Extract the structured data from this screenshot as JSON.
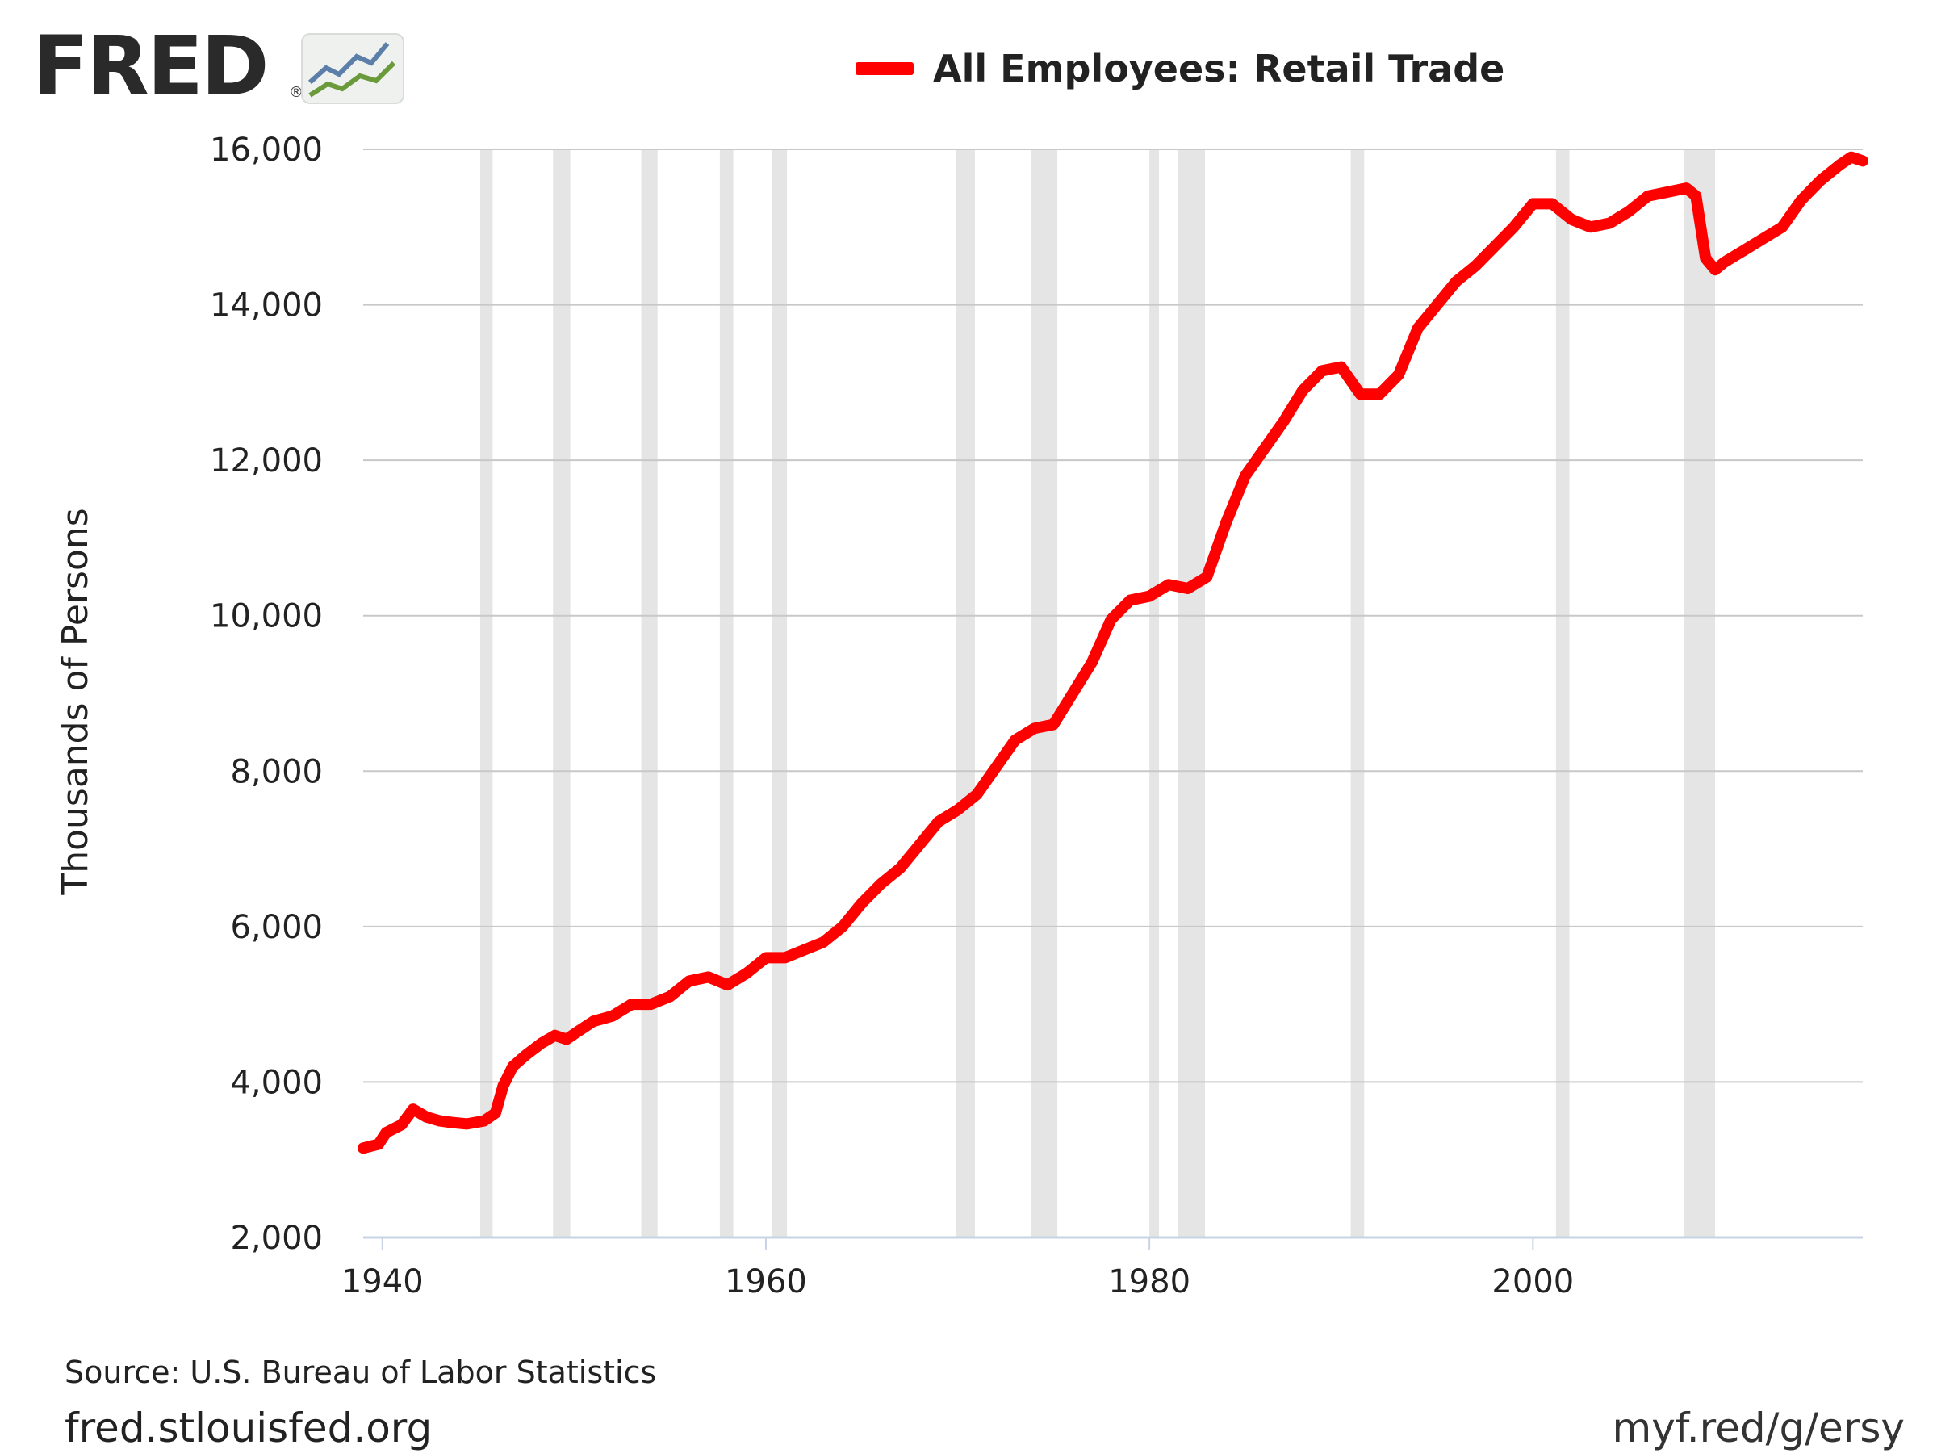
{
  "logo": {
    "text": "FRED",
    "reg": "®"
  },
  "colors": {
    "series": "#ff0000",
    "recession": "#e5e5e5",
    "grid": "#c8c8c8",
    "axis": "#c8d4e4"
  },
  "chart_data": {
    "type": "line",
    "title": "All Employees: Retail Trade",
    "ylabel": "Thousands of Persons",
    "xlabel": "",
    "xlim": [
      1939,
      2017.2
    ],
    "ylim": [
      2000,
      16000
    ],
    "xticks": [
      1940,
      1960,
      1980,
      2000
    ],
    "xtick_labels": [
      "1940",
      "1960",
      "1980",
      "2000"
    ],
    "yticks": [
      2000,
      4000,
      6000,
      8000,
      10000,
      12000,
      14000,
      16000
    ],
    "ytick_labels": [
      "2,000",
      "4,000",
      "6,000",
      "8,000",
      "10,000",
      "12,000",
      "14,000",
      "16,000"
    ],
    "grid": true,
    "legend": "top-center",
    "recessions": [
      [
        1945.1,
        1945.75
      ],
      [
        1948.9,
        1949.8
      ],
      [
        1953.5,
        1954.35
      ],
      [
        1957.6,
        1958.3
      ],
      [
        1960.3,
        1961.1
      ],
      [
        1969.9,
        1970.9
      ],
      [
        1973.85,
        1975.2
      ],
      [
        1980.0,
        1980.5
      ],
      [
        1981.5,
        1982.9
      ],
      [
        1990.5,
        1991.2
      ],
      [
        2001.2,
        2001.9
      ],
      [
        2007.9,
        2009.5
      ]
    ],
    "series": [
      {
        "name": "All Employees: Retail Trade",
        "x": [
          1939.0,
          1939.8,
          1940.2,
          1941.0,
          1941.6,
          1942.3,
          1943.0,
          1943.6,
          1944.4,
          1945.3,
          1945.9,
          1946.3,
          1946.8,
          1947.5,
          1948.3,
          1949.0,
          1949.6,
          1950.2,
          1951.0,
          1952.0,
          1953.0,
          1954.0,
          1955.0,
          1956.0,
          1957.0,
          1958.0,
          1959.0,
          1960.0,
          1961.0,
          1962.0,
          1963.0,
          1964.0,
          1965.0,
          1966.0,
          1967.0,
          1968.0,
          1969.0,
          1970.0,
          1971.0,
          1972.0,
          1973.0,
          1974.0,
          1975.0,
          1976.0,
          1977.0,
          1978.0,
          1979.0,
          1980.0,
          1981.0,
          1982.0,
          1983.0,
          1984.0,
          1985.0,
          1986.0,
          1987.0,
          1988.0,
          1989.0,
          1990.0,
          1991.0,
          1992.0,
          1993.0,
          1994.0,
          1995.0,
          1996.0,
          1997.0,
          1998.0,
          1999.0,
          2000.0,
          2001.0,
          2002.0,
          2003.0,
          2004.0,
          2005.0,
          2006.0,
          2007.0,
          2008.0,
          2008.5,
          2009.0,
          2009.5,
          2010.0,
          2011.0,
          2012.0,
          2013.0,
          2014.0,
          2015.0,
          2016.0,
          2016.6,
          2017.2
        ],
        "values": [
          3150,
          3200,
          3350,
          3450,
          3650,
          3550,
          3500,
          3480,
          3460,
          3500,
          3600,
          3950,
          4200,
          4350,
          4500,
          4600,
          4550,
          4650,
          4780,
          4850,
          5000,
          5000,
          5100,
          5300,
          5350,
          5250,
          5400,
          5600,
          5600,
          5700,
          5800,
          6000,
          6300,
          6550,
          6750,
          7050,
          7350,
          7500,
          7700,
          8050,
          8400,
          8550,
          8600,
          9000,
          9400,
          9950,
          10200,
          10250,
          10400,
          10350,
          10500,
          11200,
          11800,
          12150,
          12500,
          12900,
          13150,
          13200,
          12850,
          12850,
          13100,
          13700,
          14000,
          14300,
          14500,
          14750,
          15000,
          15300,
          15300,
          15100,
          15000,
          15050,
          15200,
          15400,
          15450,
          15500,
          15400,
          14600,
          14450,
          14550,
          14700,
          14850,
          15000,
          15350,
          15600,
          15800,
          15900,
          15850
        ]
      }
    ]
  },
  "footer": {
    "source": "Source: U.S. Bureau of Labor Statistics",
    "site": "fred.stlouisfed.org",
    "shorturl": "myf.red/g/ersy"
  }
}
